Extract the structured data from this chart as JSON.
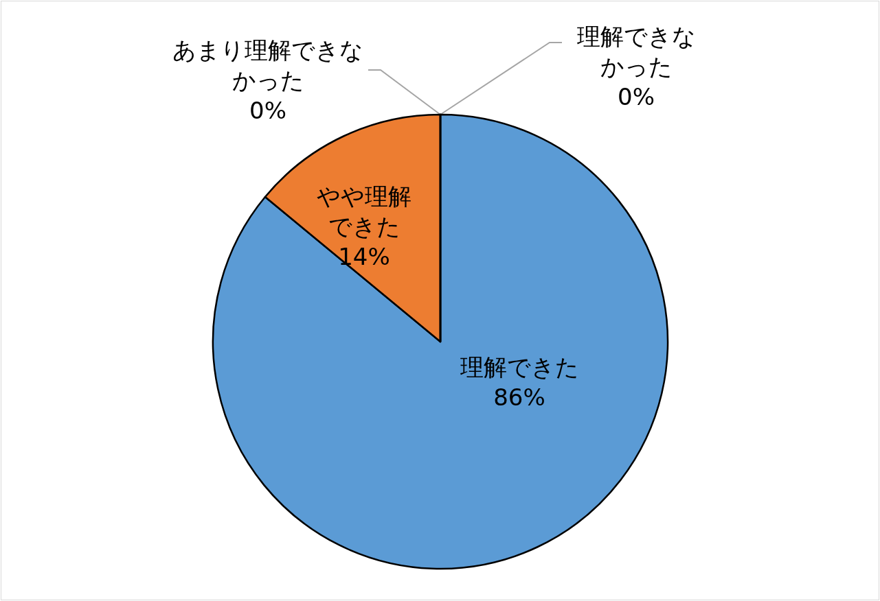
{
  "chart_data": {
    "type": "pie",
    "categories": [
      "理解できた",
      "やや理解できた",
      "あまり理解できなかった",
      "理解できなかった"
    ],
    "values": [
      86,
      14,
      0,
      0
    ],
    "colors": [
      "#5b9bd5",
      "#ed7d31",
      "#a5a5a5",
      "#ffc000"
    ],
    "value_labels": [
      "86%",
      "14%",
      "0%",
      "0%"
    ],
    "legend": false
  }
}
